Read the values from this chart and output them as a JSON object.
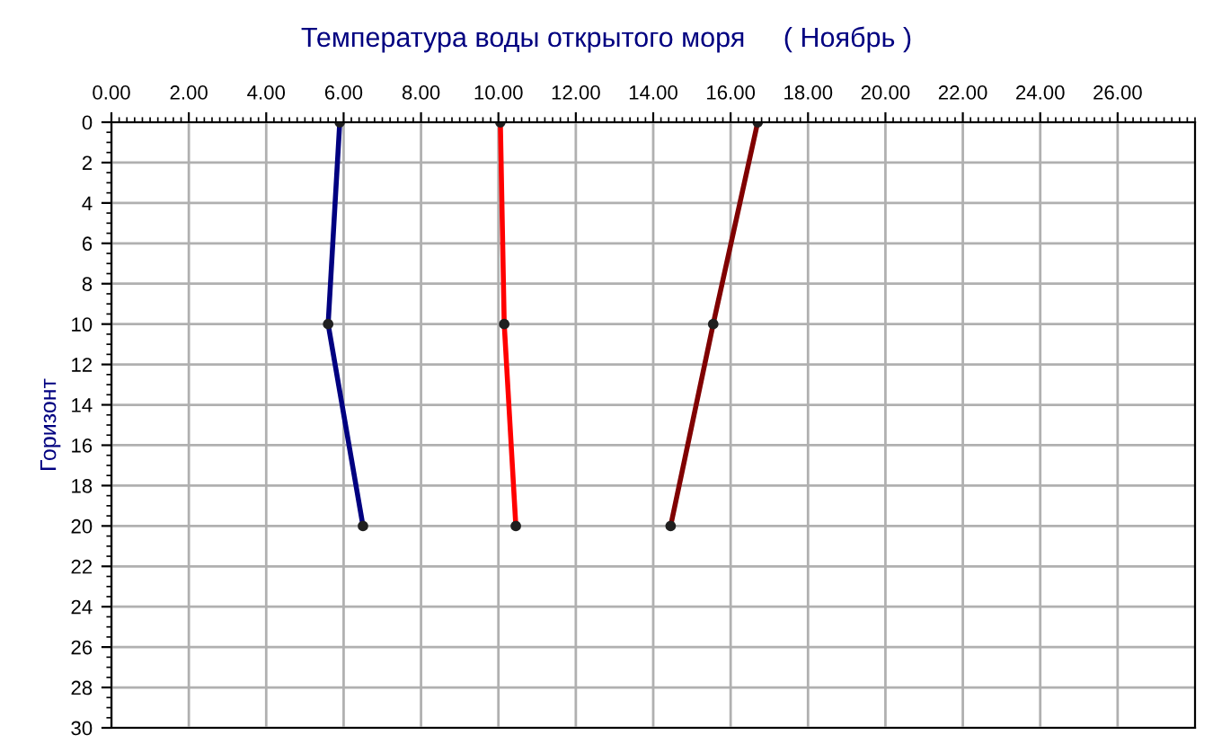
{
  "chart_data": {
    "type": "line",
    "title": "Температура воды открытого моря     ( Ноябрь )",
    "ylabel": "Горизонт",
    "xlim": [
      0,
      28
    ],
    "xticks": [
      {
        "value": 0,
        "label": "0.00"
      },
      {
        "value": 2,
        "label": "2.00"
      },
      {
        "value": 4,
        "label": "4.00"
      },
      {
        "value": 6,
        "label": "6.00"
      },
      {
        "value": 8,
        "label": "8.00"
      },
      {
        "value": 10,
        "label": "10.00"
      },
      {
        "value": 12,
        "label": "12.00"
      },
      {
        "value": 14,
        "label": "14.00"
      },
      {
        "value": 16,
        "label": "16.00"
      },
      {
        "value": 18,
        "label": "18.00"
      },
      {
        "value": 20,
        "label": "20.00"
      },
      {
        "value": 22,
        "label": "22.00"
      },
      {
        "value": 24,
        "label": "24.00"
      },
      {
        "value": 26,
        "label": "26.00"
      }
    ],
    "ylim": [
      30,
      0
    ],
    "yticks": [
      0,
      2,
      4,
      6,
      8,
      10,
      12,
      14,
      16,
      18,
      20,
      22,
      24,
      26,
      28,
      30
    ],
    "grid": true,
    "marker": "circle",
    "line_style": "solid",
    "series": [
      {
        "color": "#000080",
        "x": [
          5.9,
          5.6,
          6.5
        ],
        "values": [
          0,
          10,
          20
        ]
      },
      {
        "color": "#ff0000",
        "x": [
          10.05,
          10.15,
          10.45
        ],
        "values": [
          0,
          10,
          20
        ]
      },
      {
        "color": "#800000",
        "x": [
          16.7,
          15.55,
          14.45
        ],
        "values": [
          0,
          10,
          20
        ]
      }
    ]
  }
}
